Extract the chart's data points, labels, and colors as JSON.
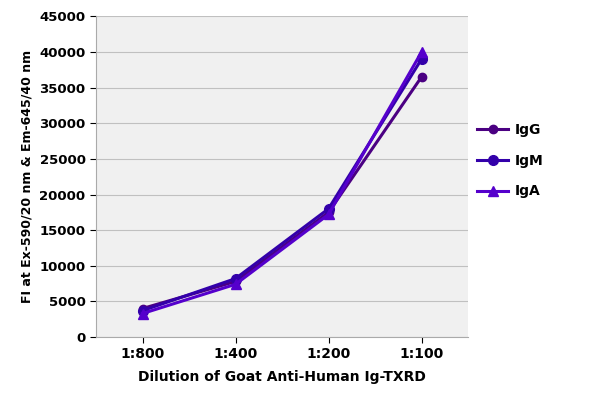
{
  "x_labels": [
    "1:800",
    "1:400",
    "1:200",
    "1:100"
  ],
  "x_positions": [
    0,
    1,
    2,
    3
  ],
  "IgG": [
    4000,
    7800,
    17500,
    36500
  ],
  "IgM": [
    3700,
    8200,
    18000,
    39000
  ],
  "IgA": [
    3300,
    7400,
    17200,
    40000
  ],
  "color_IgG": "#4B0082",
  "color_IgM": "#3300AA",
  "color_IgA": "#5500CC",
  "ylabel": "FI at Ex-590/20 nm & Em-645/40 nm",
  "xlabel": "Dilution of Goat Anti-Human Ig-TXRD",
  "ylim": [
    0,
    45000
  ],
  "yticks": [
    0,
    5000,
    10000,
    15000,
    20000,
    25000,
    30000,
    35000,
    40000,
    45000
  ],
  "ytick_labels": [
    "0",
    "5000",
    "10000",
    "15000",
    "20000",
    "25000",
    "30000",
    "35000",
    "40000",
    "45000"
  ],
  "legend_labels": [
    "IgG",
    "IgM",
    "IgA"
  ],
  "background_color": "#ffffff",
  "grid_color": "#c0c0c0",
  "plot_bg": "#f0f0f0"
}
